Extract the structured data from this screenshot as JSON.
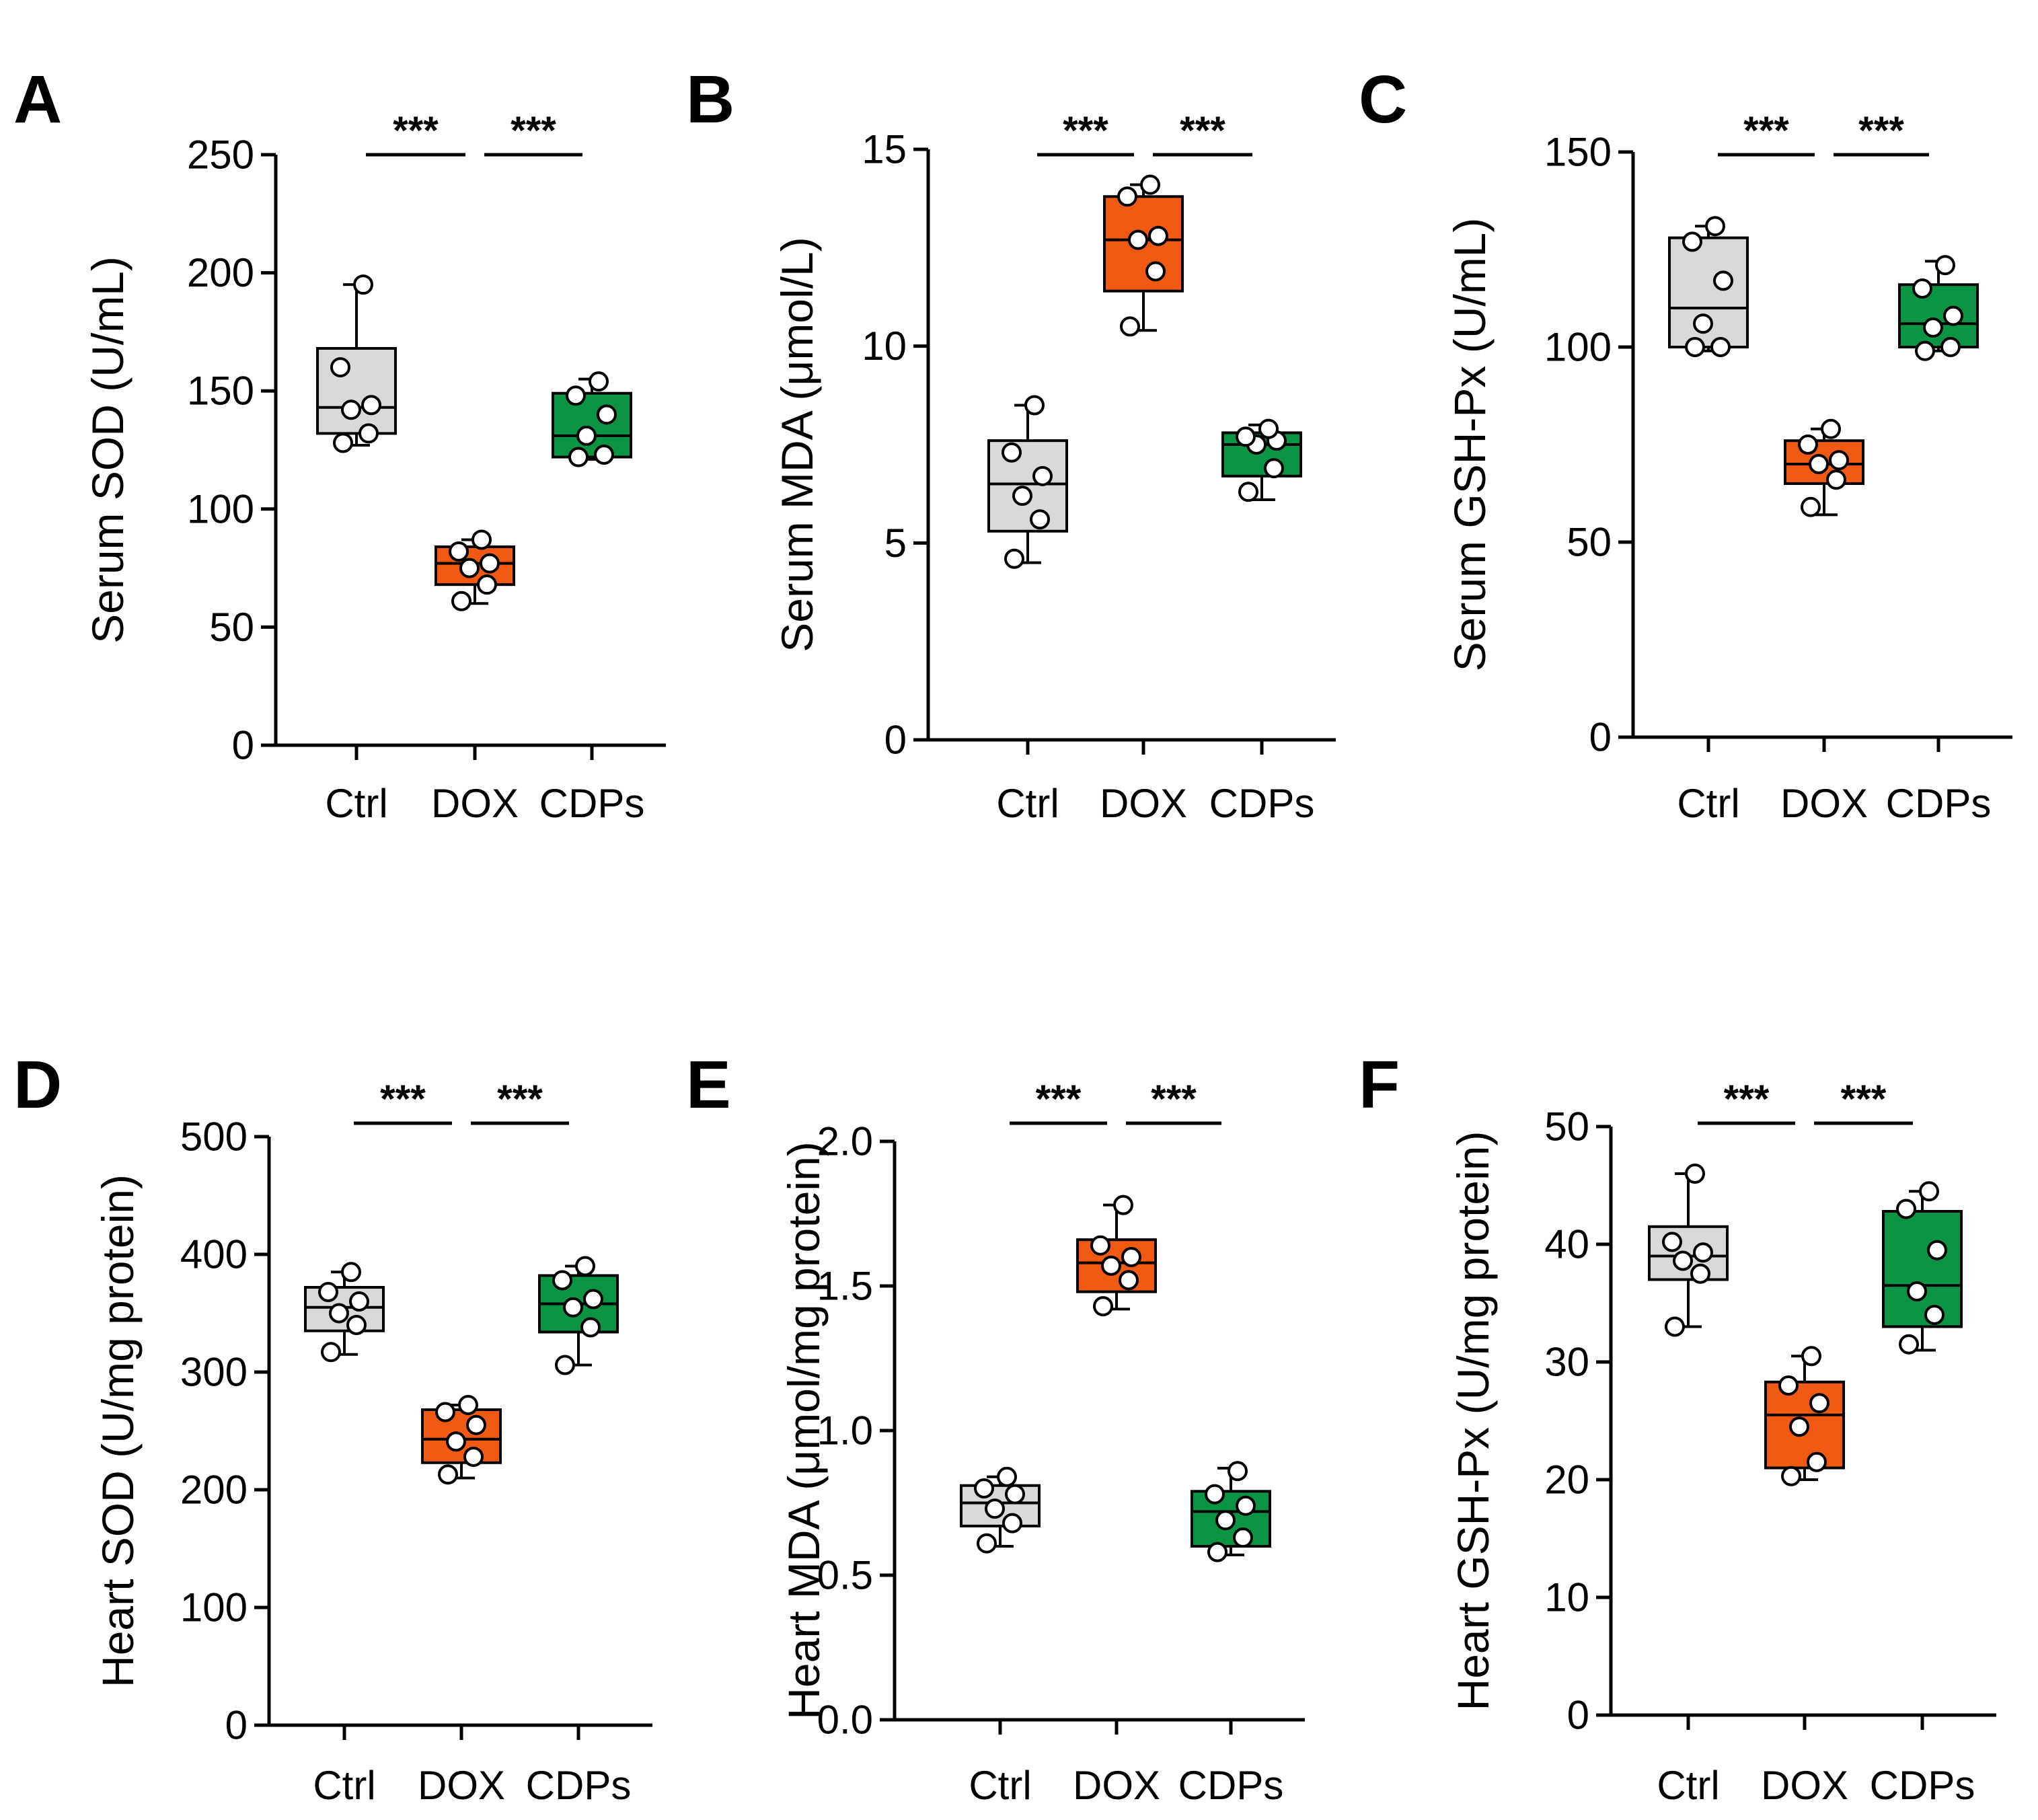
{
  "figure": {
    "colors": {
      "Ctrl": "#d9d9d9",
      "DOX": "#f05a12",
      "CDPs": "#0a9444",
      "line": "#000000",
      "point": "#ffffff"
    }
  },
  "chart_data": [
    {
      "type": "box",
      "panel": "A",
      "title": "",
      "xlabel": "",
      "ylabel": "Serum SOD (U/mL)",
      "categories": [
        "Ctrl",
        "DOX",
        "CDPs"
      ],
      "ylim": [
        0,
        250
      ],
      "yticks": [
        "0",
        "50",
        "100",
        "150",
        "200",
        "250"
      ],
      "ytick_values": [
        0,
        50,
        100,
        150,
        200,
        250
      ],
      "series": [
        {
          "name": "Ctrl",
          "min": 127,
          "q1": 132,
          "median": 143,
          "q3": 168,
          "max": 195,
          "points": [
            128,
            132,
            142,
            144,
            160,
            195
          ]
        },
        {
          "name": "DOX",
          "min": 60,
          "q1": 68,
          "median": 77,
          "q3": 84,
          "max": 87,
          "points": [
            61,
            68,
            75,
            77,
            82,
            87
          ]
        },
        {
          "name": "CDPs",
          "min": 121,
          "q1": 122,
          "median": 131,
          "q3": 149,
          "max": 155,
          "points": [
            122,
            123,
            131,
            140,
            148,
            154
          ]
        }
      ],
      "significance": [
        {
          "from": "Ctrl",
          "to": "DOX",
          "label": "***"
        },
        {
          "from": "DOX",
          "to": "CDPs",
          "label": "***"
        }
      ]
    },
    {
      "type": "box",
      "panel": "B",
      "title": "",
      "xlabel": "",
      "ylabel": "Serum MDA (μmol/L)",
      "categories": [
        "Ctrl",
        "DOX",
        "CDPs"
      ],
      "ylim": [
        0,
        15
      ],
      "yticks": [
        "0",
        "5",
        "10",
        "15"
      ],
      "ytick_values": [
        0,
        5,
        10,
        15
      ],
      "series": [
        {
          "name": "Ctrl",
          "min": 4.5,
          "q1": 5.3,
          "median": 6.5,
          "q3": 7.6,
          "max": 8.5,
          "points": [
            4.6,
            5.6,
            6.2,
            6.7,
            7.3,
            8.5
          ]
        },
        {
          "name": "DOX",
          "min": 10.4,
          "q1": 11.4,
          "median": 12.7,
          "q3": 13.8,
          "max": 14.1,
          "points": [
            10.5,
            11.9,
            12.7,
            12.8,
            13.8,
            14.1
          ]
        },
        {
          "name": "CDPs",
          "min": 6.1,
          "q1": 6.7,
          "median": 7.5,
          "q3": 7.8,
          "max": 8.0,
          "points": [
            6.3,
            6.9,
            7.5,
            7.6,
            7.7,
            7.9
          ]
        }
      ],
      "significance": [
        {
          "from": "Ctrl",
          "to": "DOX",
          "label": "***"
        },
        {
          "from": "DOX",
          "to": "CDPs",
          "label": "***"
        }
      ]
    },
    {
      "type": "box",
      "panel": "C",
      "title": "",
      "xlabel": "",
      "ylabel": "Serum GSH-Px (U/mL)",
      "categories": [
        "Ctrl",
        "DOX",
        "CDPs"
      ],
      "ylim": [
        0,
        150
      ],
      "yticks": [
        "0",
        "50",
        "100",
        "150"
      ],
      "ytick_values": [
        0,
        50,
        100,
        150
      ],
      "series": [
        {
          "name": "Ctrl",
          "min": 99,
          "q1": 100,
          "median": 110,
          "q3": 128,
          "max": 131,
          "points": [
            100,
            100,
            106,
            117,
            127,
            131
          ]
        },
        {
          "name": "DOX",
          "min": 57,
          "q1": 65,
          "median": 70,
          "q3": 76,
          "max": 79,
          "points": [
            59,
            66,
            70,
            71,
            75,
            79
          ]
        },
        {
          "name": "CDPs",
          "min": 99,
          "q1": 100,
          "median": 106,
          "q3": 116,
          "max": 122,
          "points": [
            99,
            100,
            105,
            108,
            115,
            121
          ]
        }
      ],
      "significance": [
        {
          "from": "Ctrl",
          "to": "DOX",
          "label": "***"
        },
        {
          "from": "DOX",
          "to": "CDPs",
          "label": "***"
        }
      ]
    },
    {
      "type": "box",
      "panel": "D",
      "title": "",
      "xlabel": "",
      "ylabel": "Heart SOD (U/mg protein)",
      "categories": [
        "Ctrl",
        "DOX",
        "CDPs"
      ],
      "ylim": [
        0,
        500
      ],
      "yticks": [
        "0",
        "100",
        "200",
        "300",
        "400",
        "500"
      ],
      "ytick_values": [
        0,
        100,
        200,
        300,
        400,
        500
      ],
      "series": [
        {
          "name": "Ctrl",
          "min": 315,
          "q1": 335,
          "median": 355,
          "q3": 372,
          "max": 385,
          "points": [
            317,
            340,
            350,
            360,
            368,
            385
          ]
        },
        {
          "name": "DOX",
          "min": 210,
          "q1": 223,
          "median": 243,
          "q3": 268,
          "max": 272,
          "points": [
            213,
            228,
            241,
            255,
            266,
            272
          ]
        },
        {
          "name": "CDPs",
          "min": 306,
          "q1": 334,
          "median": 358,
          "q3": 382,
          "max": 390,
          "points": [
            306,
            338,
            355,
            362,
            378,
            390
          ]
        }
      ],
      "significance": [
        {
          "from": "Ctrl",
          "to": "DOX",
          "label": "***"
        },
        {
          "from": "DOX",
          "to": "CDPs",
          "label": "***"
        }
      ]
    },
    {
      "type": "box",
      "panel": "E",
      "title": "",
      "xlabel": "",
      "ylabel": "Heart  MDA (μmol/mg protein)",
      "categories": [
        "Ctrl",
        "DOX",
        "CDPs"
      ],
      "ylim": [
        0,
        2.0
      ],
      "yticks": [
        "0.0",
        "0.5",
        "1.0",
        "1.5",
        "2.0"
      ],
      "ytick_values": [
        0,
        0.5,
        1.0,
        1.5,
        2.0
      ],
      "series": [
        {
          "name": "Ctrl",
          "min": 0.6,
          "q1": 0.67,
          "median": 0.75,
          "q3": 0.81,
          "max": 0.84,
          "points": [
            0.61,
            0.68,
            0.73,
            0.78,
            0.8,
            0.84
          ]
        },
        {
          "name": "DOX",
          "min": 1.42,
          "q1": 1.48,
          "median": 1.58,
          "q3": 1.66,
          "max": 1.78,
          "points": [
            1.43,
            1.52,
            1.57,
            1.6,
            1.64,
            1.78
          ]
        },
        {
          "name": "CDPs",
          "min": 0.57,
          "q1": 0.6,
          "median": 0.72,
          "q3": 0.79,
          "max": 0.87,
          "points": [
            0.58,
            0.63,
            0.69,
            0.74,
            0.78,
            0.86
          ]
        }
      ],
      "significance": [
        {
          "from": "Ctrl",
          "to": "DOX",
          "label": "***"
        },
        {
          "from": "DOX",
          "to": "CDPs",
          "label": "***"
        }
      ]
    },
    {
      "type": "box",
      "panel": "F",
      "title": "",
      "xlabel": "",
      "ylabel": "Heart GSH-Px (U/mg protein)",
      "categories": [
        "Ctrl",
        "DOX",
        "CDPs"
      ],
      "ylim": [
        0,
        50
      ],
      "yticks": [
        "0",
        "10",
        "20",
        "30",
        "40",
        "50"
      ],
      "ytick_values": [
        0,
        10,
        20,
        30,
        40,
        50
      ],
      "series": [
        {
          "name": "Ctrl",
          "min": 33,
          "q1": 37,
          "median": 39,
          "q3": 41.5,
          "max": 46,
          "points": [
            33,
            37.5,
            38.6,
            39.3,
            40.2,
            46
          ]
        },
        {
          "name": "DOX",
          "min": 20,
          "q1": 21,
          "median": 25.5,
          "q3": 28.3,
          "max": 30.5,
          "points": [
            20.3,
            21.5,
            24.5,
            26.5,
            28,
            30.5
          ]
        },
        {
          "name": "CDPs",
          "min": 31,
          "q1": 33,
          "median": 36.5,
          "q3": 42.8,
          "max": 44.5,
          "points": [
            31.5,
            34,
            36,
            39.5,
            43,
            44.5
          ]
        }
      ],
      "significance": [
        {
          "from": "Ctrl",
          "to": "DOX",
          "label": "***"
        },
        {
          "from": "DOX",
          "to": "CDPs",
          "label": "***"
        }
      ]
    }
  ]
}
